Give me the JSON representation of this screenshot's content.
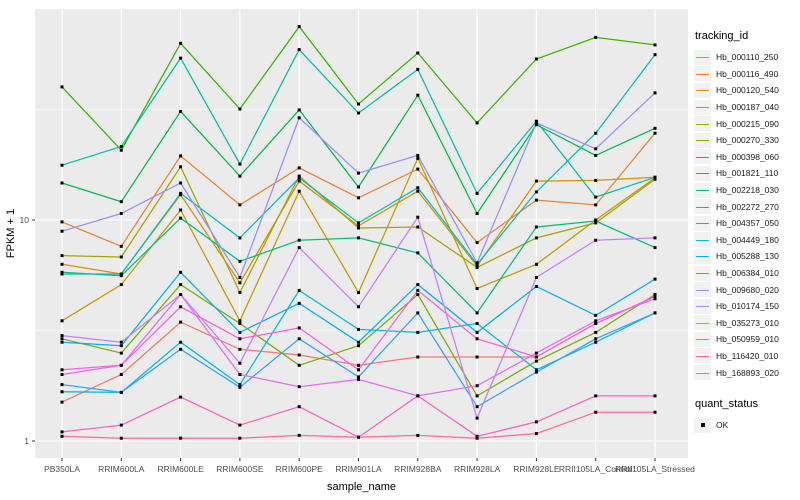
{
  "colors": {
    "panel_bg": "#EBEBEB",
    "grid_major": "#FFFFFF",
    "grid_minor": "#F7F7F7",
    "tick_mark": "#333333",
    "tick_text": "#4D4D4D",
    "axis_title": "#000000",
    "legend_key_bg": "#F2F2F2",
    "marker": "#000000"
  },
  "legend": {
    "title": "tracking_id",
    "quant_title": "quant_status",
    "quant_items": [
      {
        "label": "OK",
        "marker": "black-square"
      }
    ]
  },
  "chart_data": {
    "type": "line",
    "title": "",
    "xlabel": "sample_name",
    "ylabel": "FPKM + 1",
    "y_scale": "log10",
    "y_ticks": [
      10,
      1
    ],
    "y_minor_ticks": [
      31.62,
      3.162
    ],
    "ylim": [
      0.84,
      90
    ],
    "grid": true,
    "legend_position": "right",
    "marker": "black-square",
    "categories": [
      "PB350LA",
      "RRIM600LA",
      "RRIM600LE",
      "RRIM600SE",
      "RRIM600PE",
      "RRIM901LA",
      "RRIM928BA",
      "RRIM928LA",
      "RRIM928LE",
      "RRII105LA_Control",
      "RRII105LA_Stressed"
    ],
    "series": [
      {
        "name": "Hb_000110_250",
        "color": "#F8766D",
        "values": [
          1.5,
          2.0,
          3.45,
          2.6,
          2.45,
          2.2,
          2.4,
          2.4,
          2.4,
          3.4,
          4.5
        ]
      },
      {
        "name": "Hb_000116_490",
        "color": "#EA8331",
        "values": [
          9.8,
          7.6,
          19.5,
          11.7,
          17.2,
          12.6,
          17.0,
          7.9,
          12.3,
          11.7,
          24.7
        ]
      },
      {
        "name": "Hb_000120_540",
        "color": "#D89000",
        "values": [
          6.3,
          5.7,
          13.0,
          5.2,
          15.0,
          9.4,
          13.5,
          6.2,
          15.0,
          15.1,
          15.6
        ]
      },
      {
        "name": "Hb_000187_040",
        "color": "#C09B00",
        "values": [
          3.5,
          5.1,
          11.1,
          3.5,
          13.5,
          4.7,
          19.0,
          4.9,
          6.3,
          10.0,
          15.5
        ]
      },
      {
        "name": "Hb_000215_090",
        "color": "#A3A500",
        "values": [
          6.9,
          6.8,
          17.4,
          4.7,
          15.8,
          9.2,
          9.3,
          6.1,
          8.3,
          9.7,
          15.3
        ]
      },
      {
        "name": "Hb_000270_330",
        "color": "#7CAE00",
        "values": [
          2.9,
          2.5,
          5.1,
          3.4,
          2.2,
          2.7,
          4.6,
          1.6,
          2.3,
          3.1,
          4.6
        ]
      },
      {
        "name": "Hb_000398_060",
        "color": "#39B600",
        "values": [
          40.0,
          20.7,
          63.0,
          31.8,
          75.0,
          33.5,
          57.0,
          27.5,
          53.5,
          67.0,
          62.0
        ]
      },
      {
        "name": "Hb_001821_110",
        "color": "#00BB4E",
        "values": [
          14.7,
          12.1,
          31.0,
          15.8,
          31.5,
          14.1,
          36.7,
          10.7,
          27.0,
          19.6,
          26.0
        ]
      },
      {
        "name": "Hb_002218_030",
        "color": "#00BF7D",
        "values": [
          5.8,
          5.6,
          10.2,
          6.5,
          8.1,
          8.3,
          7.1,
          3.8,
          9.3,
          9.9,
          7.5
        ]
      },
      {
        "name": "Hb_002272_270",
        "color": "#00C1A3",
        "values": [
          17.7,
          21.5,
          54.0,
          17.9,
          59.0,
          30.5,
          48.0,
          13.2,
          28.0,
          12.7,
          15.6
        ]
      },
      {
        "name": "Hb_004357_050",
        "color": "#00BFC4",
        "values": [
          5.7,
          5.7,
          13.2,
          8.3,
          15.5,
          9.7,
          14.0,
          6.3,
          13.4,
          24.7,
          56.0
        ]
      },
      {
        "name": "Hb_004449_180",
        "color": "#00BAE0",
        "values": [
          1.67,
          1.66,
          2.8,
          1.8,
          4.8,
          3.2,
          3.1,
          3.4,
          2.1,
          2.8,
          3.8
        ]
      },
      {
        "name": "Hb_005288_130",
        "color": "#00B0F6",
        "values": [
          2.8,
          2.7,
          5.8,
          3.1,
          4.2,
          2.8,
          5.1,
          3.1,
          5.0,
          3.7,
          5.4
        ]
      },
      {
        "name": "Hb_006384_010",
        "color": "#35A2FF",
        "values": [
          1.8,
          1.66,
          2.6,
          1.75,
          2.9,
          1.95,
          3.8,
          1.43,
          2.05,
          2.9,
          3.8
        ]
      },
      {
        "name": "Hb_009680_020",
        "color": "#9590FF",
        "values": [
          8.9,
          10.7,
          14.7,
          5.5,
          29.0,
          16.3,
          19.6,
          6.4,
          27.5,
          21.0,
          37.6
        ]
      },
      {
        "name": "Hb_010174_150",
        "color": "#C77CFF",
        "values": [
          3.0,
          2.8,
          4.6,
          2.25,
          7.5,
          4.05,
          10.3,
          1.27,
          5.5,
          8.1,
          8.3
        ]
      },
      {
        "name": "Hb_035273_010",
        "color": "#E76BF3",
        "values": [
          2.0,
          2.2,
          4.6,
          2.0,
          1.76,
          1.9,
          1.6,
          1.78,
          2.5,
          3.5,
          4.4
        ]
      },
      {
        "name": "Hb_050959_010",
        "color": "#FA62DB",
        "values": [
          2.1,
          2.2,
          4.05,
          2.9,
          3.25,
          2.1,
          4.8,
          2.9,
          2.4,
          3.4,
          4.5
        ]
      },
      {
        "name": "Hb_116420_010",
        "color": "#FF62BC",
        "values": [
          1.1,
          1.18,
          1.58,
          1.18,
          1.43,
          1.04,
          1.6,
          1.05,
          1.22,
          1.6,
          1.6
        ]
      },
      {
        "name": "Hb_168893_020",
        "color": "#FF6A98",
        "values": [
          1.05,
          1.03,
          1.03,
          1.03,
          1.06,
          1.04,
          1.06,
          1.03,
          1.08,
          1.35,
          1.35
        ]
      }
    ]
  }
}
